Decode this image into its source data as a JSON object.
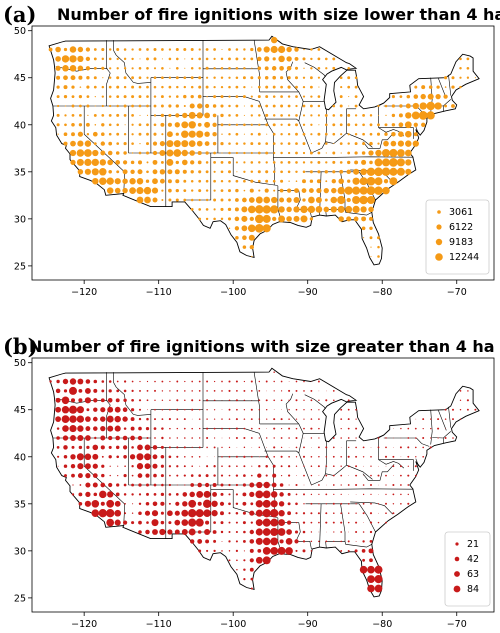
{
  "panels": [
    {
      "label": "(a)",
      "title": "Number of fire ignitions with size lower than 4 ha",
      "color": "#f59a16",
      "legend": [
        "3061",
        "6122",
        "9183",
        "12244"
      ]
    },
    {
      "label": "(b)",
      "title": "Number of fire ignitions with size greater than 4 ha",
      "color": "#c81a1a",
      "legend": [
        "21",
        "42",
        "63",
        "84"
      ]
    }
  ],
  "chart_data": [
    {
      "type": "scatter",
      "title": "Number of fire ignitions with size lower than 4 ha",
      "xticks": [
        "−120",
        "−110",
        "−100",
        "−90",
        "−80",
        "−70"
      ],
      "yticks": [
        "25",
        "30",
        "35",
        "40",
        "45",
        "50"
      ],
      "xlim": [
        -127,
        -65
      ],
      "ylim": [
        23.5,
        50.5
      ],
      "legend_title": "",
      "legend_position": "bottom-right",
      "size_legend": [
        3061,
        6122,
        9183,
        12244
      ],
      "hotspots_lon_lat": [
        [
          -120,
          37
        ],
        [
          -117,
          34
        ],
        [
          -112,
          33
        ],
        [
          -108,
          37
        ],
        [
          -105,
          40
        ],
        [
          -97,
          30
        ],
        [
          -95,
          30
        ],
        [
          -90,
          31
        ],
        [
          -85,
          32
        ],
        [
          -82,
          33
        ],
        [
          -80,
          35
        ],
        [
          -78,
          36
        ],
        [
          -75,
          40
        ],
        [
          -73,
          41
        ],
        [
          -122,
          47
        ],
        [
          -94,
          48
        ]
      ]
    },
    {
      "type": "scatter",
      "title": "Number of fire ignitions with size greater than 4 ha",
      "xticks": [
        "−120",
        "−110",
        "−100",
        "−90",
        "−80",
        "−70"
      ],
      "yticks": [
        "25",
        "30",
        "35",
        "40",
        "45",
        "50"
      ],
      "xlim": [
        -127,
        -65
      ],
      "ylim": [
        23.5,
        50.5
      ],
      "legend_title": "",
      "legend_position": "bottom-right",
      "size_legend": [
        21,
        42,
        63,
        84
      ],
      "hotspots_lon_lat": [
        [
          -122,
          44
        ],
        [
          -120,
          40
        ],
        [
          -118,
          35
        ],
        [
          -117,
          33
        ],
        [
          -116,
          44
        ],
        [
          -112,
          40
        ],
        [
          -110,
          33
        ],
        [
          -105,
          33
        ],
        [
          -104,
          35
        ],
        [
          -96,
          36
        ],
        [
          -95,
          33
        ],
        [
          -95,
          29
        ],
        [
          -94,
          30
        ],
        [
          -81,
          26
        ],
        [
          -81,
          28
        ],
        [
          -80,
          25
        ],
        [
          -121,
          47
        ]
      ]
    }
  ]
}
